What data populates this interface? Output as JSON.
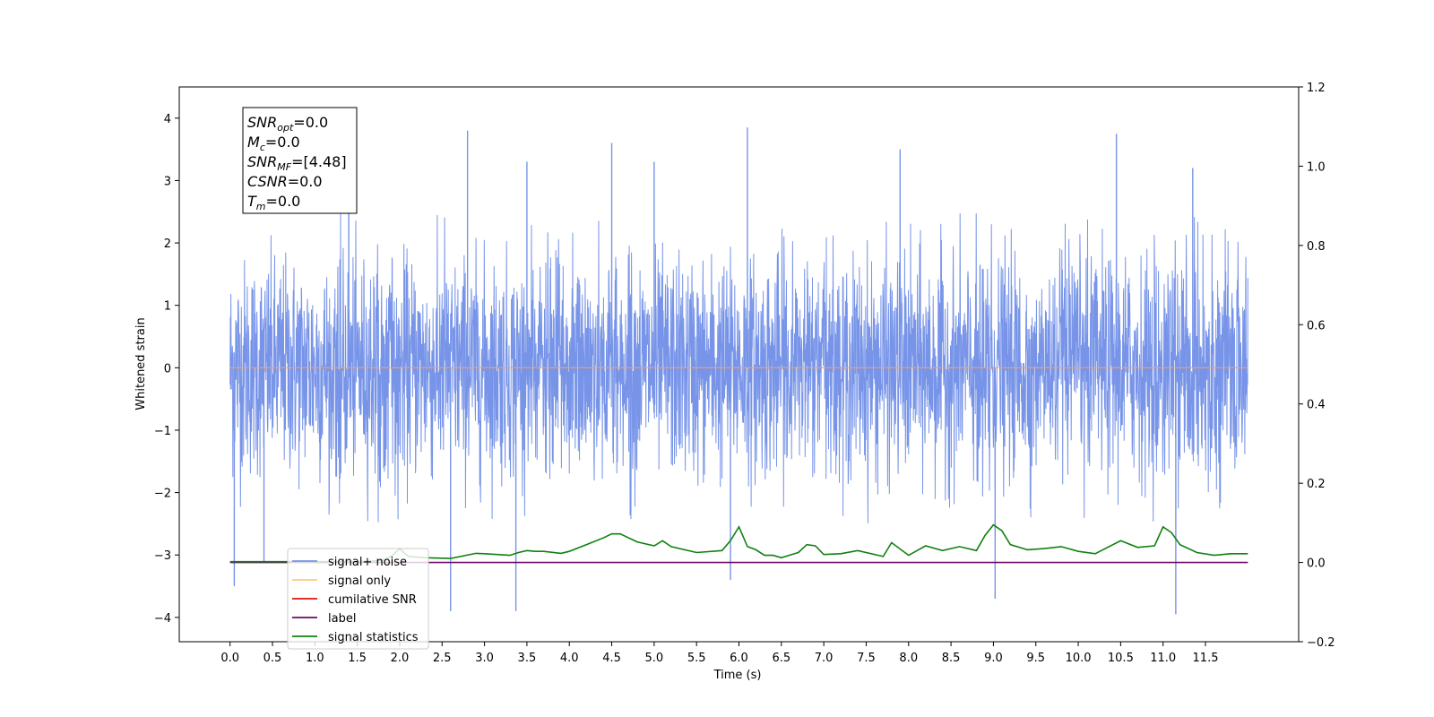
{
  "chart_data": {
    "type": "line",
    "xlabel": "Time (s)",
    "ylabel": "Whitened strain",
    "xlim": [
      -0.5988,
      12.5988
    ],
    "ylim": [
      -4.39,
      4.5
    ],
    "ylim_right": [
      -0.2,
      1.2
    ],
    "x_ticks": [
      "0.0",
      "0.5",
      "1.0",
      "1.5",
      "2.0",
      "2.5",
      "3.0",
      "3.5",
      "4.0",
      "4.5",
      "5.0",
      "5.5",
      "6.0",
      "6.5",
      "7.0",
      "7.5",
      "8.0",
      "8.5",
      "9.0",
      "9.5",
      "10.0",
      "10.5",
      "11.0",
      "11.5"
    ],
    "y_ticks_left": [
      "4",
      "3",
      "2",
      "1",
      "0",
      "−1",
      "−2",
      "−3",
      "−4"
    ],
    "y_ticks_right": [
      "1.2",
      "1.0",
      "0.8",
      "0.6",
      "0.4",
      "0.2",
      "0.0",
      "−0.2"
    ],
    "colors": {
      "signal_noise": "#7794e8",
      "signal_only": "#f0a070",
      "cumulative_snr": "#e01010",
      "label": "#6a0a6a",
      "signal_statistics": "#108010"
    },
    "legend": {
      "placement": "lower-left",
      "entries": [
        {
          "name": "signal+ noise",
          "color": "#7794e8"
        },
        {
          "name": "signal only",
          "color": "#ffc878"
        },
        {
          "name": "cumilative SNR",
          "color": "#e01010"
        },
        {
          "name": "label",
          "color": "#6a0a6a"
        },
        {
          "name": "signal statistics",
          "color": "#108010"
        }
      ]
    },
    "annotation": {
      "lines": [
        {
          "base": "SNR",
          "sub": "opt",
          "value": "=0.0"
        },
        {
          "base": "M",
          "sub": "c",
          "value": "=0.0"
        },
        {
          "base": "SNR",
          "sub": "MF",
          "value": "=[4.48]"
        },
        {
          "base": "CSNR",
          "sub": "",
          "value": "=0.0"
        },
        {
          "base": "T",
          "sub": "m",
          "value": "=0.0"
        }
      ]
    },
    "noise_series": {
      "name": "signal+ noise",
      "x_range": [
        0.0,
        12.0
      ],
      "envelope_note": "dense whitened noise, mostly within about ±2.5",
      "spikes": [
        {
          "x": 0.05,
          "y": -3.5
        },
        {
          "x": 0.4,
          "y": -3.1
        },
        {
          "x": 1.4,
          "y": 3.0
        },
        {
          "x": 2.6,
          "y": -3.9
        },
        {
          "x": 2.8,
          "y": 3.8
        },
        {
          "x": 3.37,
          "y": -3.9
        },
        {
          "x": 3.5,
          "y": 3.3
        },
        {
          "x": 4.5,
          "y": 3.6
        },
        {
          "x": 5.0,
          "y": 3.3
        },
        {
          "x": 6.1,
          "y": 3.85
        },
        {
          "x": 5.9,
          "y": -3.4
        },
        {
          "x": 7.9,
          "y": 3.5
        },
        {
          "x": 9.02,
          "y": -3.7
        },
        {
          "x": 10.45,
          "y": 3.75
        },
        {
          "x": 11.15,
          "y": -3.95
        },
        {
          "x": 11.35,
          "y": 3.2
        }
      ]
    },
    "signal_only_value": 0.0,
    "label_series": {
      "name": "label",
      "x": [
        0.0,
        12.0
      ],
      "y": [
        0.0,
        0.0
      ]
    },
    "statistics_series": {
      "name": "signal statistics",
      "x": [
        0.0,
        0.5,
        1.0,
        1.5,
        1.8,
        1.9,
        2.0,
        2.1,
        2.3,
        2.6,
        2.9,
        3.0,
        3.3,
        3.4,
        3.5,
        3.6,
        3.7,
        3.9,
        4.0,
        4.2,
        4.4,
        4.5,
        4.6,
        4.8,
        5.0,
        5.1,
        5.2,
        5.5,
        5.8,
        5.9,
        6.0,
        6.1,
        6.2,
        6.3,
        6.4,
        6.5,
        6.7,
        6.8,
        6.9,
        7.0,
        7.2,
        7.4,
        7.7,
        7.8,
        8.0,
        8.2,
        8.4,
        8.6,
        8.8,
        8.9,
        9.0,
        9.1,
        9.2,
        9.4,
        9.6,
        9.8,
        10.0,
        10.2,
        10.5,
        10.7,
        10.9,
        11.0,
        11.1,
        11.2,
        11.4,
        11.6,
        11.8,
        12.0
      ],
      "y": [
        0.002,
        0.002,
        0.002,
        0.002,
        0.005,
        0.015,
        0.035,
        0.015,
        0.012,
        0.01,
        0.023,
        0.022,
        0.018,
        0.025,
        0.03,
        0.028,
        0.028,
        0.023,
        0.028,
        0.045,
        0.062,
        0.072,
        0.072,
        0.052,
        0.042,
        0.055,
        0.04,
        0.025,
        0.03,
        0.055,
        0.09,
        0.04,
        0.032,
        0.018,
        0.018,
        0.012,
        0.025,
        0.045,
        0.042,
        0.02,
        0.022,
        0.03,
        0.015,
        0.05,
        0.018,
        0.042,
        0.03,
        0.04,
        0.03,
        0.068,
        0.095,
        0.08,
        0.045,
        0.032,
        0.035,
        0.04,
        0.028,
        0.022,
        0.055,
        0.038,
        0.042,
        0.09,
        0.075,
        0.045,
        0.025,
        0.018,
        0.022,
        0.022
      ]
    }
  }
}
